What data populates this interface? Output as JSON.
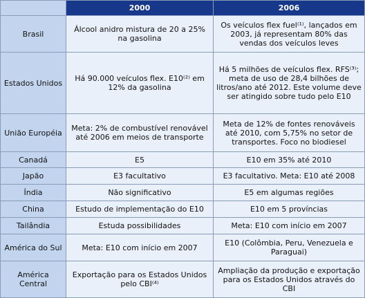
{
  "table": {
    "header": [
      "2000",
      "2006"
    ],
    "rows": [
      [
        "Brasil",
        "Álcool anidro mistura de 20 a 25% na gasolina",
        "Os veículos flex fuel⁽¹⁾, lançados em 2003, já representam 80% das vendas dos veículos leves"
      ],
      [
        "Estados Unidos",
        "Há 90.000 veículos flex. E10⁽²⁾ em 12% da gasolina",
        "Há 5 milhões de veículos flex. RFS⁽³⁾; meta de uso de 28,4 bilhões de litros/ano até 2012. Este volume deve ser atingido sobre tudo pelo E10"
      ],
      [
        "União Européia",
        "Meta: 2% de combustível renovável até 2006 em meios de transporte",
        "Meta de 12% de fontes renováveis até 2010, com 5,75% no setor de transportes. Foco no biodiesel"
      ],
      [
        "Canadá",
        "E5",
        "E10 em 35% até 2010"
      ],
      [
        "Japão",
        "E3 facultativo",
        "E3 facultativo. Meta: E10 até 2008"
      ],
      [
        "Índia",
        "Não significativo",
        "E5 em algumas regiões"
      ],
      [
        "China",
        "Estudo de implementação do E10",
        "E10 em 5 províncias"
      ],
      [
        "Tailândia",
        "Estuda possibilidades",
        "Meta: E10 com início em 2007"
      ],
      [
        "América do Sul",
        "Meta: E10 com início em 2007",
        "E10 (Colômbia, Peru, Venezuela e Paraguai)"
      ],
      [
        "América Central",
        "Exportação para os Estados Unidos pelo CBI⁽⁴⁾",
        "Ampliação da produção e exportação para os Estados Unidos através do CBI"
      ]
    ]
  }
}
